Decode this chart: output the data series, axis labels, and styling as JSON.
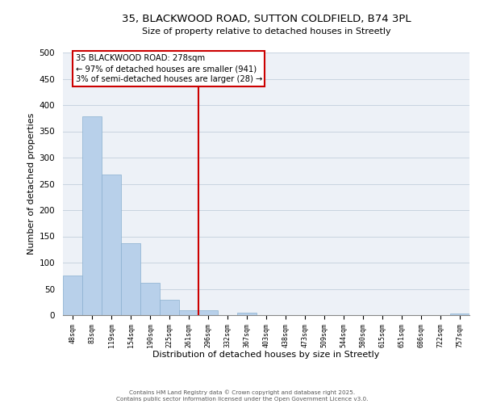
{
  "title_line1": "35, BLACKWOOD ROAD, SUTTON COLDFIELD, B74 3PL",
  "title_line2": "Size of property relative to detached houses in Streetly",
  "bar_labels": [
    "48sqm",
    "83sqm",
    "119sqm",
    "154sqm",
    "190sqm",
    "225sqm",
    "261sqm",
    "296sqm",
    "332sqm",
    "367sqm",
    "403sqm",
    "438sqm",
    "473sqm",
    "509sqm",
    "544sqm",
    "580sqm",
    "615sqm",
    "651sqm",
    "686sqm",
    "722sqm",
    "757sqm"
  ],
  "bar_heights": [
    75,
    378,
    267,
    137,
    62,
    29,
    9,
    9,
    0,
    4,
    0,
    0,
    0,
    0,
    0,
    0,
    0,
    0,
    0,
    0,
    3
  ],
  "bar_color": "#b8d0ea",
  "bar_edge_color": "#8ab0d0",
  "grid_color": "#c8d4e0",
  "vline_x": 6.5,
  "vline_color": "#cc0000",
  "annotation_title": "35 BLACKWOOD ROAD: 278sqm",
  "annotation_line1": "← 97% of detached houses are smaller (941)",
  "annotation_line2": "3% of semi-detached houses are larger (28) →",
  "annotation_box_color": "#ffffff",
  "annotation_box_edge": "#cc0000",
  "xlabel": "Distribution of detached houses by size in Streetly",
  "ylabel": "Number of detached properties",
  "ylim": [
    0,
    500
  ],
  "yticks": [
    0,
    50,
    100,
    150,
    200,
    250,
    300,
    350,
    400,
    450,
    500
  ],
  "footer_line1": "Contains HM Land Registry data © Crown copyright and database right 2025.",
  "footer_line2": "Contains public sector information licensed under the Open Government Licence v3.0.",
  "bg_color": "#ffffff",
  "plot_bg_color": "#edf1f7"
}
